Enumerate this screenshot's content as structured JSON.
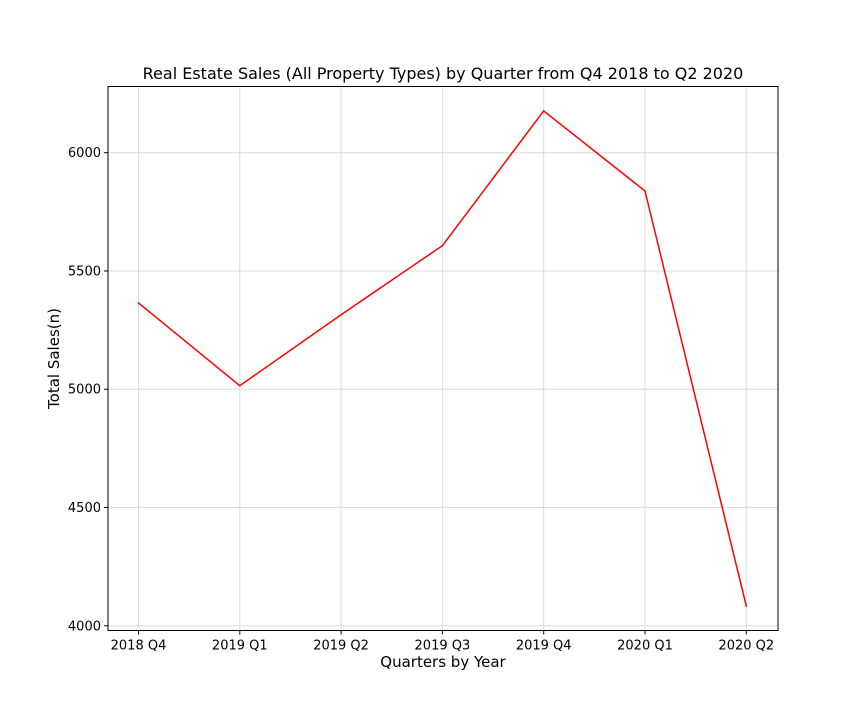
{
  "chart_data": {
    "type": "line",
    "title": "Real Estate Sales (All Property Types) by Quarter from Q4 2018 to Q2 2020",
    "xlabel": "Quarters by Year",
    "ylabel": "Total Sales(n)",
    "categories": [
      "2018 Q4",
      "2019 Q1",
      "2019 Q2",
      "2019 Q3",
      "2019 Q4",
      "2020 Q1",
      "2020 Q2"
    ],
    "series": [
      {
        "values": [
          5365,
          5015,
          5315,
          5607,
          6177,
          5838,
          4083
        ],
        "color": "#ff0000"
      }
    ],
    "yticks": [
      4000,
      4500,
      5000,
      5500,
      6000
    ],
    "ylim": [
      3980,
      6280
    ],
    "grid": true,
    "legend": "none"
  }
}
